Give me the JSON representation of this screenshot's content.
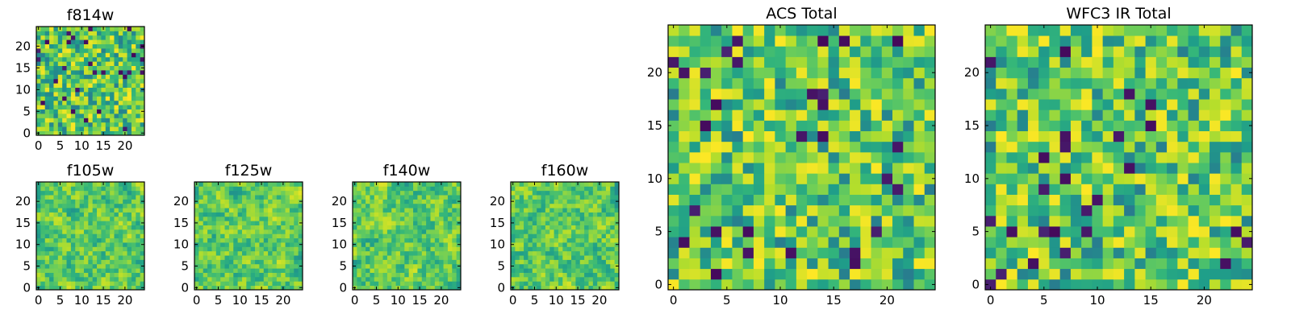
{
  "figure": {
    "title": ""
  },
  "chart_data": [
    {
      "type": "heatmap",
      "title": "f814w",
      "xlabel": "",
      "ylabel": "",
      "xlim": [
        -0.5,
        24.5
      ],
      "ylim": [
        -0.5,
        24.5
      ],
      "xticks": [
        0,
        5,
        10,
        15,
        20
      ],
      "yticks": [
        0,
        5,
        10,
        15,
        20
      ],
      "colormap": "viridis",
      "grid_size": [
        25,
        25
      ],
      "seed": 11,
      "values_note": "25x25 per-pixel intensity map (high-frequency noise); individual cell values not labeled"
    },
    {
      "type": "heatmap",
      "title": "f105w",
      "xlabel": "",
      "ylabel": "",
      "xlim": [
        -0.5,
        24.5
      ],
      "ylim": [
        -0.5,
        24.5
      ],
      "xticks": [
        0,
        5,
        10,
        15,
        20
      ],
      "yticks": [
        0,
        5,
        10,
        15,
        20
      ],
      "colormap": "viridis",
      "grid_size": [
        25,
        25
      ],
      "seed": 23,
      "values_note": "25x25 smooth intensity map; individual cell values not labeled"
    },
    {
      "type": "heatmap",
      "title": "f125w",
      "xlabel": "",
      "ylabel": "",
      "xlim": [
        -0.5,
        24.5
      ],
      "ylim": [
        -0.5,
        24.5
      ],
      "xticks": [
        0,
        5,
        10,
        15,
        20
      ],
      "yticks": [
        0,
        5,
        10,
        15,
        20
      ],
      "colormap": "viridis",
      "grid_size": [
        25,
        25
      ],
      "seed": 37,
      "values_note": "25x25 smooth intensity map; individual cell values not labeled"
    },
    {
      "type": "heatmap",
      "title": "f140w",
      "xlabel": "",
      "ylabel": "",
      "xlim": [
        -0.5,
        24.5
      ],
      "ylim": [
        -0.5,
        24.5
      ],
      "xticks": [
        0,
        5,
        10,
        15,
        20
      ],
      "yticks": [
        0,
        5,
        10,
        15,
        20
      ],
      "colormap": "viridis",
      "grid_size": [
        25,
        25
      ],
      "seed": 41,
      "values_note": "25x25 smooth intensity map; individual cell values not labeled"
    },
    {
      "type": "heatmap",
      "title": "f160w",
      "xlabel": "",
      "ylabel": "",
      "xlim": [
        -0.5,
        24.5
      ],
      "ylim": [
        -0.5,
        24.5
      ],
      "xticks": [
        0,
        5,
        10,
        15,
        20
      ],
      "yticks": [
        0,
        5,
        10,
        15,
        20
      ],
      "colormap": "viridis",
      "grid_size": [
        25,
        25
      ],
      "seed": 53,
      "values_note": "25x25 smooth intensity map; individual cell values not labeled"
    },
    {
      "type": "heatmap",
      "title": "ACS Total",
      "xlabel": "",
      "ylabel": "",
      "xlim": [
        -0.5,
        24.5
      ],
      "ylim": [
        -0.5,
        24.5
      ],
      "xticks": [
        0,
        5,
        10,
        15,
        20
      ],
      "yticks": [
        0,
        5,
        10,
        15,
        20
      ],
      "colormap": "viridis",
      "grid_size": [
        25,
        25
      ],
      "seed": 67,
      "values_note": "25x25 pixelated intensity map, mostly green-yellow with sparse dark pixels"
    },
    {
      "type": "heatmap",
      "title": "WFC3 IR Total",
      "xlabel": "",
      "ylabel": "",
      "xlim": [
        -0.5,
        24.5
      ],
      "ylim": [
        -0.5,
        24.5
      ],
      "xticks": [
        0,
        5,
        10,
        15,
        20
      ],
      "yticks": [
        0,
        5,
        10,
        15,
        20
      ],
      "colormap": "viridis",
      "grid_size": [
        25,
        25
      ],
      "seed": 79,
      "values_note": "25x25 pixelated intensity map, mostly green-yellow with sparse dark pixels"
    }
  ]
}
